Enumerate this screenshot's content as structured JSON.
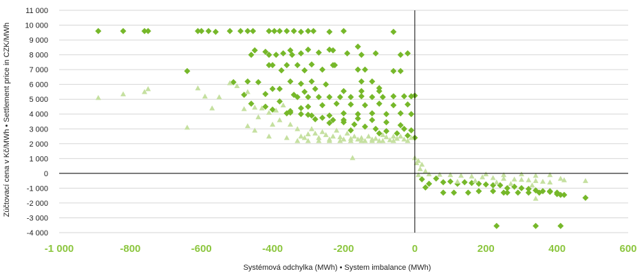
{
  "chart_data": {
    "type": "scatter",
    "title": "",
    "xlabel": "Systémová odchylka (MWh) • System imbalance (MWh)",
    "ylabel": "Zúčtovací cena v Kč/MWh • Settlement price in CZK/MWh",
    "xlim": [
      -1000,
      600
    ],
    "ylim": [
      -4000,
      11000
    ],
    "x_ticks": [
      -1000,
      -800,
      -600,
      -400,
      -200,
      0,
      200,
      400,
      600
    ],
    "x_tick_labels": [
      "-1 000",
      "-800",
      "-600",
      "-400",
      "-200",
      "0",
      "200",
      "400",
      "600"
    ],
    "y_ticks": [
      11000,
      10000,
      9000,
      8000,
      7000,
      6000,
      5000,
      4000,
      3000,
      2000,
      1000,
      0,
      -1000,
      -2000,
      -3000,
      -4000
    ],
    "y_tick_labels": [
      "11 000",
      "10 000",
      "9 000",
      "8 000",
      "7 000",
      "6 000",
      "5 000",
      "4 000",
      "3 000",
      "2 000",
      "1 000",
      "0",
      "-1 000",
      "-2 000",
      "-3 000",
      "-4 000"
    ],
    "grid": true,
    "legend": "none",
    "colors": {
      "diamond": "#76b82a",
      "triangle": "#c5e0a0",
      "x_tick": "#8cc63f",
      "grid": "#d6d6d6",
      "axis": "#000000"
    },
    "series": [
      {
        "marker": "diamond",
        "points": [
          [
            -890,
            9600
          ],
          [
            -820,
            9600
          ],
          [
            -760,
            9600
          ],
          [
            -750,
            9600
          ],
          [
            -610,
            9600
          ],
          [
            -600,
            9600
          ],
          [
            -580,
            9600
          ],
          [
            -560,
            9550
          ],
          [
            -520,
            9600
          ],
          [
            -490,
            9600
          ],
          [
            -470,
            9600
          ],
          [
            -455,
            9600
          ],
          [
            -410,
            9600
          ],
          [
            -395,
            9600
          ],
          [
            -380,
            9600
          ],
          [
            -360,
            9600
          ],
          [
            -340,
            9600
          ],
          [
            -320,
            9550
          ],
          [
            -300,
            9600
          ],
          [
            -285,
            9600
          ],
          [
            -240,
            9550
          ],
          [
            -200,
            9600
          ],
          [
            -60,
            9550
          ],
          [
            -640,
            6900
          ],
          [
            -460,
            8000
          ],
          [
            -450,
            8300
          ],
          [
            -420,
            8200
          ],
          [
            -410,
            8000
          ],
          [
            -390,
            8000
          ],
          [
            -370,
            8100
          ],
          [
            -350,
            8300
          ],
          [
            -345,
            8000
          ],
          [
            -320,
            8100
          ],
          [
            -300,
            8350
          ],
          [
            -270,
            8150
          ],
          [
            -240,
            8350
          ],
          [
            -230,
            8300
          ],
          [
            -190,
            8100
          ],
          [
            -160,
            8550
          ],
          [
            -150,
            8000
          ],
          [
            -110,
            8100
          ],
          [
            -40,
            8000
          ],
          [
            -20,
            8100
          ],
          [
            -410,
            7300
          ],
          [
            -400,
            7300
          ],
          [
            -375,
            6950
          ],
          [
            -360,
            7300
          ],
          [
            -330,
            7300
          ],
          [
            -310,
            6950
          ],
          [
            -290,
            7350
          ],
          [
            -260,
            7000
          ],
          [
            -230,
            7300
          ],
          [
            -225,
            7300
          ],
          [
            -160,
            7000
          ],
          [
            -140,
            7000
          ],
          [
            -60,
            6900
          ],
          [
            -40,
            6900
          ],
          [
            -510,
            6150
          ],
          [
            -470,
            6200
          ],
          [
            -440,
            6150
          ],
          [
            -350,
            6200
          ],
          [
            -320,
            6050
          ],
          [
            -290,
            6200
          ],
          [
            -250,
            6000
          ],
          [
            -150,
            6200
          ],
          [
            -120,
            6200
          ],
          [
            -100,
            5750
          ],
          [
            -480,
            5300
          ],
          [
            -420,
            5350
          ],
          [
            -400,
            5700
          ],
          [
            -380,
            5700
          ],
          [
            -340,
            5300
          ],
          [
            -310,
            5500
          ],
          [
            -280,
            5700
          ],
          [
            -200,
            5550
          ],
          [
            -150,
            5550
          ],
          [
            -100,
            5550
          ],
          [
            -330,
            5150
          ],
          [
            -300,
            5150
          ],
          [
            -270,
            5150
          ],
          [
            -240,
            5150
          ],
          [
            -210,
            5150
          ],
          [
            -180,
            5150
          ],
          [
            -150,
            5200
          ],
          [
            -120,
            5150
          ],
          [
            -90,
            5150
          ],
          [
            -60,
            5200
          ],
          [
            -30,
            5200
          ],
          [
            -10,
            5200
          ],
          [
            0,
            5250
          ],
          [
            -460,
            4700
          ],
          [
            -420,
            4500
          ],
          [
            -380,
            4850
          ],
          [
            -350,
            4200
          ],
          [
            -320,
            4400
          ],
          [
            -300,
            4500
          ],
          [
            -260,
            4600
          ],
          [
            -220,
            4700
          ],
          [
            -180,
            4650
          ],
          [
            -140,
            4600
          ],
          [
            -100,
            4700
          ],
          [
            -60,
            4600
          ],
          [
            -20,
            4650
          ],
          [
            -400,
            4300
          ],
          [
            -360,
            4050
          ],
          [
            -300,
            3950
          ],
          [
            -240,
            3900
          ],
          [
            -200,
            4050
          ],
          [
            -160,
            4000
          ],
          [
            -120,
            4050
          ],
          [
            -80,
            4000
          ],
          [
            -40,
            4050
          ],
          [
            -10,
            4000
          ],
          [
            -350,
            4100
          ],
          [
            -320,
            4000
          ],
          [
            -290,
            3900
          ],
          [
            -260,
            3750
          ],
          [
            -230,
            3600
          ],
          [
            -200,
            3450
          ],
          [
            -170,
            3300
          ],
          [
            -140,
            3150
          ],
          [
            -110,
            3000
          ],
          [
            -80,
            2850
          ],
          [
            -50,
            2700
          ],
          [
            -20,
            2550
          ],
          [
            0,
            2400
          ],
          [
            -280,
            3650
          ],
          [
            -240,
            3400
          ],
          [
            -200,
            3600
          ],
          [
            -160,
            3700
          ],
          [
            -120,
            3600
          ],
          [
            -80,
            3450
          ],
          [
            -40,
            3250
          ],
          [
            -10,
            2900
          ],
          [
            -180,
            2900
          ],
          [
            -100,
            2700
          ],
          [
            -30,
            3000
          ],
          [
            20,
            -400
          ],
          [
            40,
            -700
          ],
          [
            60,
            -350
          ],
          [
            80,
            -600
          ],
          [
            100,
            -550
          ],
          [
            120,
            -700
          ],
          [
            140,
            -600
          ],
          [
            160,
            -650
          ],
          [
            180,
            -700
          ],
          [
            200,
            -750
          ],
          [
            220,
            -800
          ],
          [
            240,
            -800
          ],
          [
            260,
            -1000
          ],
          [
            280,
            -900
          ],
          [
            300,
            -1000
          ],
          [
            320,
            -1050
          ],
          [
            340,
            -1150
          ],
          [
            360,
            -1200
          ],
          [
            380,
            -1250
          ],
          [
            400,
            -1300
          ],
          [
            30,
            -950
          ],
          [
            80,
            -1300
          ],
          [
            110,
            -1300
          ],
          [
            150,
            -1300
          ],
          [
            180,
            -1200
          ],
          [
            220,
            -1200
          ],
          [
            250,
            -1300
          ],
          [
            260,
            -1300
          ],
          [
            290,
            -1300
          ],
          [
            320,
            -1300
          ],
          [
            350,
            -1300
          ],
          [
            380,
            -1200
          ],
          [
            400,
            -1400
          ],
          [
            410,
            -1450
          ],
          [
            420,
            -1450
          ],
          [
            480,
            -1650
          ],
          [
            230,
            -3550
          ],
          [
            340,
            -3550
          ],
          [
            410,
            -3550
          ]
        ]
      },
      {
        "marker": "triangle",
        "points": [
          [
            -890,
            5100
          ],
          [
            -820,
            5350
          ],
          [
            -760,
            5500
          ],
          [
            -750,
            5700
          ],
          [
            -640,
            3100
          ],
          [
            -610,
            5750
          ],
          [
            -590,
            5200
          ],
          [
            -570,
            4400
          ],
          [
            -550,
            5150
          ],
          [
            -520,
            6100
          ],
          [
            -500,
            5900
          ],
          [
            -480,
            4350
          ],
          [
            -470,
            5500
          ],
          [
            -450,
            4450
          ],
          [
            -440,
            3800
          ],
          [
            -430,
            4400
          ],
          [
            -410,
            4100
          ],
          [
            -400,
            3300
          ],
          [
            -390,
            4250
          ],
          [
            -370,
            4600
          ],
          [
            -360,
            2400
          ],
          [
            -450,
            2900
          ],
          [
            -470,
            3200
          ],
          [
            -410,
            2500
          ],
          [
            -380,
            3600
          ],
          [
            -350,
            3300
          ],
          [
            -330,
            3000
          ],
          [
            -320,
            2500
          ],
          [
            -310,
            2400
          ],
          [
            -300,
            2650
          ],
          [
            -290,
            3000
          ],
          [
            -280,
            2700
          ],
          [
            -270,
            2400
          ],
          [
            -260,
            2800
          ],
          [
            -250,
            2600
          ],
          [
            -240,
            2300
          ],
          [
            -230,
            2500
          ],
          [
            -220,
            2900
          ],
          [
            -210,
            2450
          ],
          [
            -200,
            2300
          ],
          [
            -190,
            2700
          ],
          [
            -180,
            2350
          ],
          [
            -170,
            2500
          ],
          [
            -160,
            2300
          ],
          [
            -150,
            2400
          ],
          [
            -140,
            2200
          ],
          [
            -130,
            2500
          ],
          [
            -120,
            2300
          ],
          [
            -110,
            2350
          ],
          [
            -100,
            2200
          ],
          [
            -90,
            2600
          ],
          [
            -80,
            2450
          ],
          [
            -70,
            2250
          ],
          [
            -60,
            2500
          ],
          [
            -50,
            2350
          ],
          [
            -40,
            2500
          ],
          [
            -30,
            2300
          ],
          [
            -20,
            2200
          ],
          [
            -10,
            2400
          ],
          [
            -175,
            1050
          ],
          [
            -330,
            2200
          ],
          [
            -300,
            2200
          ],
          [
            -270,
            2200
          ],
          [
            -240,
            2200
          ],
          [
            -210,
            2200
          ],
          [
            -180,
            2200
          ],
          [
            -150,
            2200
          ],
          [
            -120,
            2200
          ],
          [
            -90,
            2200
          ],
          [
            -60,
            2200
          ],
          [
            0,
            1050
          ],
          [
            5,
            700
          ],
          [
            10,
            850
          ],
          [
            20,
            600
          ],
          [
            15,
            300
          ],
          [
            30,
            150
          ],
          [
            10,
            -100
          ],
          [
            40,
            -50
          ],
          [
            70,
            -80
          ],
          [
            100,
            -100
          ],
          [
            130,
            -150
          ],
          [
            160,
            -200
          ],
          [
            190,
            -250
          ],
          [
            220,
            -300
          ],
          [
            250,
            -350
          ],
          [
            280,
            -400
          ],
          [
            300,
            -420
          ],
          [
            320,
            -450
          ],
          [
            340,
            -500
          ],
          [
            360,
            -550
          ],
          [
            380,
            -600
          ],
          [
            200,
            -50
          ],
          [
            250,
            -100
          ],
          [
            300,
            -50
          ],
          [
            340,
            -150
          ],
          [
            380,
            -100
          ],
          [
            410,
            -350
          ],
          [
            420,
            -450
          ],
          [
            480,
            -500
          ],
          [
            340,
            -1700
          ],
          [
            120,
            -550
          ],
          [
            170,
            -500
          ],
          [
            230,
            -600
          ],
          [
            270,
            -700
          ],
          [
            330,
            -800
          ]
        ]
      }
    ]
  }
}
